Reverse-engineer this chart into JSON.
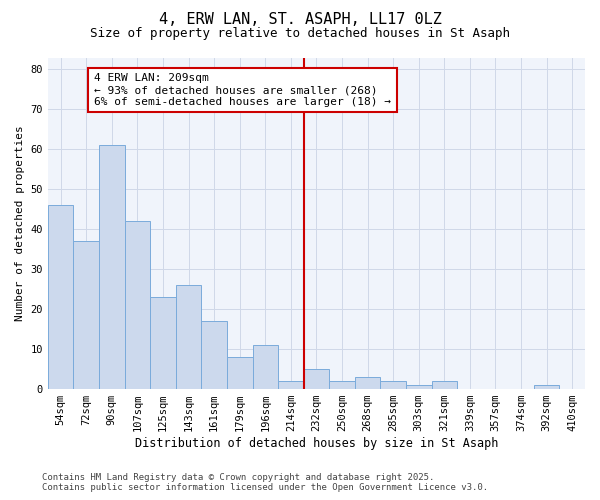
{
  "title": "4, ERW LAN, ST. ASAPH, LL17 0LZ",
  "subtitle": "Size of property relative to detached houses in St Asaph",
  "xlabel": "Distribution of detached houses by size in St Asaph",
  "ylabel": "Number of detached properties",
  "bar_labels": [
    "54sqm",
    "72sqm",
    "90sqm",
    "107sqm",
    "125sqm",
    "143sqm",
    "161sqm",
    "179sqm",
    "196sqm",
    "214sqm",
    "232sqm",
    "250sqm",
    "268sqm",
    "285sqm",
    "303sqm",
    "321sqm",
    "339sqm",
    "357sqm",
    "374sqm",
    "392sqm",
    "410sqm"
  ],
  "bar_values": [
    46,
    37,
    61,
    42,
    23,
    26,
    17,
    8,
    11,
    2,
    5,
    2,
    3,
    2,
    1,
    2,
    0,
    0,
    0,
    1,
    0
  ],
  "bar_color": "#ccd9ed",
  "bar_edge_color": "#7aabdb",
  "vline_x": 9.5,
  "vline_color": "#cc0000",
  "annotation_text": "4 ERW LAN: 209sqm\n← 93% of detached houses are smaller (268)\n6% of semi-detached houses are larger (18) →",
  "annotation_box_color": "#ffffff",
  "annotation_box_edge": "#cc0000",
  "annotation_fontsize": 8,
  "ylim": [
    0,
    83
  ],
  "yticks": [
    0,
    10,
    20,
    30,
    40,
    50,
    60,
    70,
    80
  ],
  "footer_line1": "Contains HM Land Registry data © Crown copyright and database right 2025.",
  "footer_line2": "Contains public sector information licensed under the Open Government Licence v3.0.",
  "bg_color": "#ffffff",
  "plot_bg_color": "#f0f4fb",
  "grid_color": "#d0d8e8",
  "title_fontsize": 11,
  "subtitle_fontsize": 9,
  "tick_fontsize": 7.5,
  "ylabel_fontsize": 8,
  "xlabel_fontsize": 8.5,
  "footer_fontsize": 6.5
}
